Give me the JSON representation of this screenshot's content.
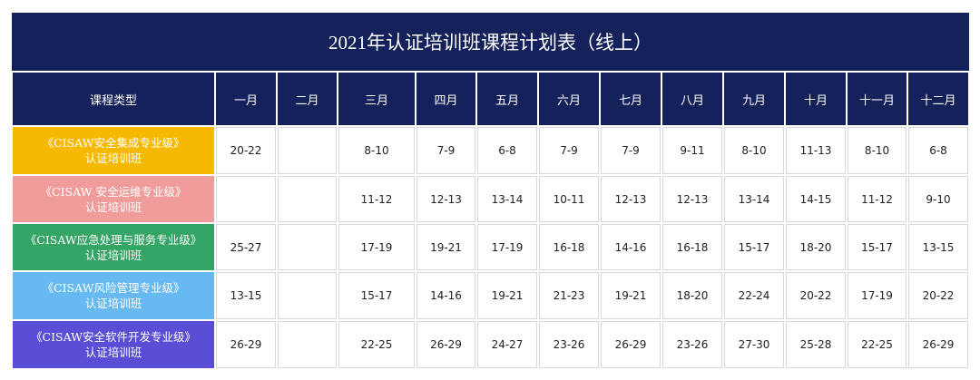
{
  "title": "2021年认证培训班课程计划表（线上）",
  "table": {
    "header": [
      "课程类型",
      "一月",
      "二月",
      "三月",
      "四月",
      "五月",
      "六月",
      "七月",
      "八月",
      "九月",
      "十月",
      "十一月",
      "十二月"
    ],
    "rows": [
      {
        "course": [
          "《CISAW安全集成专业级》",
          "认证培训班"
        ],
        "dates": [
          "20-22",
          null,
          "8-10",
          "7-9",
          "6-8",
          "7-9",
          "7-9",
          "9-11",
          "8-10",
          "11-13",
          "8-10",
          "6-8"
        ]
      },
      {
        "course": [
          "《CISAW 安全运维专业级》",
          "认证培训班"
        ],
        "dates": [
          null,
          null,
          "11-12",
          "12-13",
          "13-14",
          "10-11",
          "12-13",
          "12-13",
          "13-14",
          "14-15",
          "11-12",
          "9-10"
        ]
      },
      {
        "course": [
          "《CISAW应急处理与服务专业级》",
          "认证培训班"
        ],
        "dates": [
          "25-27",
          null,
          "17-19",
          "19-21",
          "17-19",
          "16-18",
          "14-16",
          "16-18",
          "15-17",
          "18-20",
          "15-17",
          "13-15"
        ]
      },
      {
        "course": [
          "《CISAW风险管理专业级》",
          "认证培训班"
        ],
        "dates": [
          "13-15",
          null,
          "15-17",
          "14-16",
          "19-21",
          "21-23",
          "19-21",
          "18-20",
          "22-24",
          "20-22",
          "17-19",
          "20-22"
        ]
      },
      {
        "course": [
          "《CISAW安全软件开发专业级》",
          "认证培训班"
        ],
        "dates": [
          "26-29",
          null,
          "22-25",
          "26-29",
          "24-27",
          "23-26",
          "26-29",
          "23-26",
          "27-30",
          "25-28",
          "22-25",
          "26-29"
        ]
      }
    ]
  }
}
